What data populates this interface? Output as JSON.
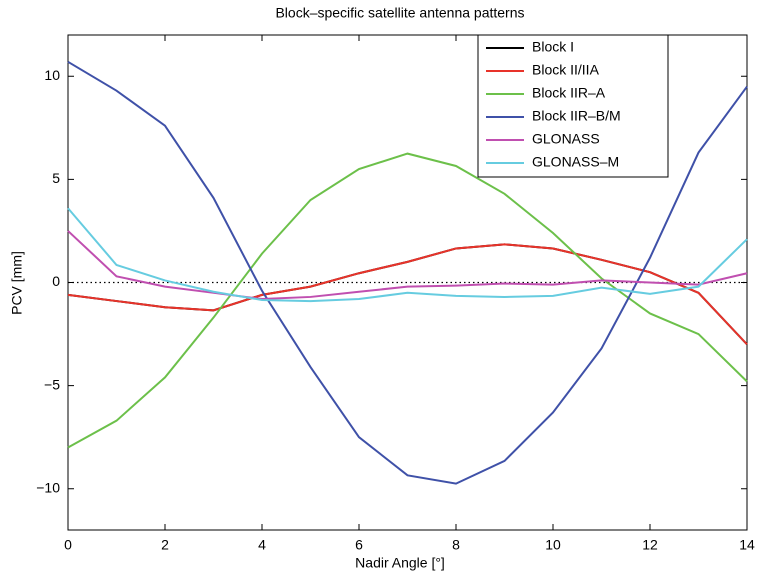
{
  "chart_data": {
    "type": "line",
    "title": "Block–specific satellite antenna patterns",
    "x_label": "Nadir Angle [°]",
    "y_label": "PCV [mm]",
    "x": [
      0,
      1,
      2,
      3,
      4,
      5,
      6,
      7,
      8,
      9,
      10,
      11,
      12,
      13,
      14
    ],
    "xlim": [
      0,
      14
    ],
    "xticks": [
      0,
      2,
      4,
      6,
      8,
      10,
      12,
      14
    ],
    "ylim": [
      -12,
      12
    ],
    "yticks": [
      {
        "value": -10,
        "label": "−10"
      },
      {
        "value": -5,
        "label": "−5"
      },
      0,
      5,
      10
    ],
    "reference_line": 0,
    "legend": "upper right",
    "series": [
      {
        "name": "Block I",
        "color": "#000000",
        "values": [
          -0.6,
          -0.9,
          -1.2,
          -1.35,
          -0.6,
          -0.2,
          0.45,
          1.0,
          1.65,
          1.85,
          1.65,
          1.1,
          0.5,
          -0.5,
          -3.0
        ]
      },
      {
        "name": "Block II/IIA",
        "color": "#e8332a",
        "values": [
          -0.6,
          -0.9,
          -1.2,
          -1.35,
          -0.6,
          -0.2,
          0.45,
          1.0,
          1.65,
          1.85,
          1.65,
          1.1,
          0.5,
          -0.5,
          -3.0
        ]
      },
      {
        "name": "Block IIR–A",
        "color": "#6cc04a",
        "values": [
          -8.0,
          -6.7,
          -4.6,
          -1.7,
          1.4,
          4.0,
          5.5,
          6.25,
          5.65,
          4.3,
          2.4,
          0.2,
          -1.5,
          -2.5,
          -4.8
        ]
      },
      {
        "name": "Block IIR–B/M",
        "color": "#3f51a8",
        "values": [
          10.7,
          9.3,
          7.6,
          4.1,
          -0.4,
          -4.1,
          -7.5,
          -9.35,
          -9.75,
          -8.65,
          -6.3,
          -3.2,
          1.2,
          6.3,
          9.5
        ]
      },
      {
        "name": "GLONASS",
        "color": "#c04fb0",
        "values": [
          2.5,
          0.3,
          -0.2,
          -0.5,
          -0.8,
          -0.7,
          -0.45,
          -0.2,
          -0.15,
          -0.05,
          -0.1,
          0.1,
          0.0,
          -0.1,
          0.45
        ]
      },
      {
        "name": "GLONASS–M",
        "color": "#66cce0",
        "values": [
          3.6,
          0.85,
          0.1,
          -0.45,
          -0.85,
          -0.9,
          -0.8,
          -0.5,
          -0.65,
          -0.7,
          -0.65,
          -0.25,
          -0.55,
          -0.2,
          2.1
        ]
      }
    ]
  }
}
